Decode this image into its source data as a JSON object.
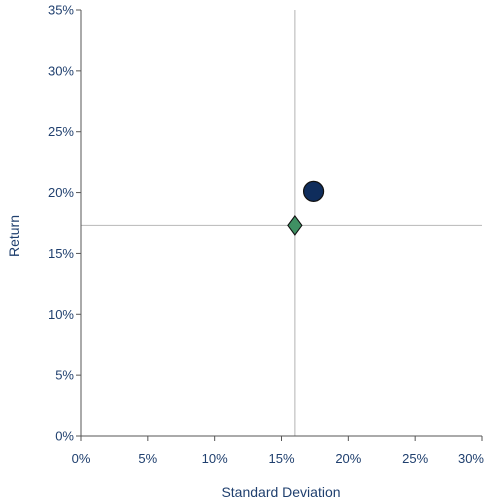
{
  "chart_data": {
    "type": "scatter",
    "title": "",
    "xlabel": "Standard Deviation",
    "ylabel": "Return",
    "xlim": [
      0,
      30
    ],
    "ylim": [
      0,
      35
    ],
    "x_ticks": [
      0,
      5,
      10,
      15,
      20,
      25,
      30
    ],
    "y_ticks": [
      0,
      5,
      10,
      15,
      20,
      25,
      30,
      35
    ],
    "x_tick_labels": [
      "0%",
      "5%",
      "10%",
      "15%",
      "20%",
      "25%",
      "30%"
    ],
    "y_tick_labels": [
      "0%",
      "5%",
      "10%",
      "15%",
      "20%",
      "25%",
      "30%",
      "35%"
    ],
    "grid": false,
    "reference_lines": {
      "x": 16.0,
      "y": 17.3,
      "color": "#c0c0c0"
    },
    "series": [
      {
        "marker": "circle",
        "color": "#0f2d5c",
        "points": [
          {
            "x": 17.4,
            "y": 20.1
          }
        ]
      },
      {
        "marker": "diamond",
        "color": "#3f9063",
        "points": [
          {
            "x": 16.0,
            "y": 17.3
          }
        ]
      }
    ],
    "text_color": "#1f3f6e",
    "axis_color": "#555555"
  }
}
